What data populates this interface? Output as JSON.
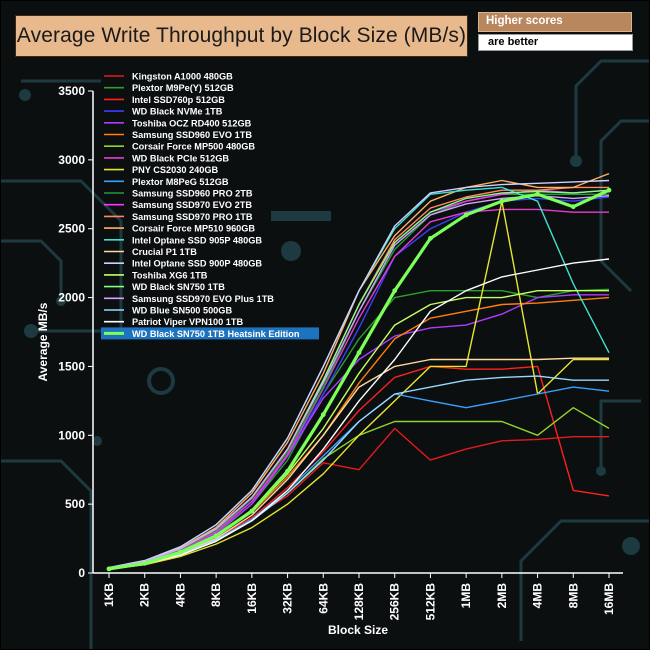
{
  "header": {
    "title": "Average Write Throughput by Block Size (MB/s)",
    "note_top": "Higher scores",
    "note_bottom": "are better"
  },
  "colors": {
    "background": "#0b0f10",
    "decor": "#1c3a40",
    "title_box": "#e8b98d",
    "note_box": "#b8875e",
    "highlight": "#1e73be"
  },
  "chart_data": {
    "type": "line",
    "title": "Average Write Throughput by Block Size (MB/s)",
    "xlabel": "Block Size",
    "ylabel": "Average MB/s",
    "ylim": [
      0,
      3500
    ],
    "yticks": [
      0,
      500,
      1000,
      1500,
      2000,
      2500,
      3000,
      3500
    ],
    "grid": false,
    "legend_placement": "top-left",
    "categories": [
      "1KB",
      "2KB",
      "4KB",
      "8KB",
      "16KB",
      "32KB",
      "64KB",
      "128KB",
      "256KB",
      "512KB",
      "1MB",
      "2MB",
      "4MB",
      "8MB",
      "16MB"
    ],
    "series": [
      {
        "name": "Kingston A1000 480GB",
        "color": "#e41a1c",
        "values": [
          30,
          60,
          120,
          250,
          400,
          560,
          800,
          750,
          1050,
          820,
          900,
          960,
          970,
          990,
          990
        ]
      },
      {
        "name": "Plextor M9Pe(Y) 512GB",
        "color": "#2ca02c",
        "values": [
          35,
          75,
          160,
          280,
          500,
          820,
          1300,
          1700,
          2000,
          2050,
          2050,
          2050,
          2000,
          2050,
          2060
        ]
      },
      {
        "name": "Intel SSD760p 512GB",
        "color": "#ff2020",
        "values": [
          32,
          70,
          140,
          250,
          400,
          620,
          880,
          1180,
          1420,
          1500,
          1480,
          1480,
          1500,
          600,
          560
        ]
      },
      {
        "name": "WD Black NVMe 1TB",
        "color": "#3a3fff",
        "values": [
          35,
          80,
          170,
          310,
          520,
          850,
          1300,
          1780,
          2300,
          2500,
          2620,
          2700,
          2720,
          2700,
          2730
        ]
      },
      {
        "name": "Toshiba OCZ RD400 512GB",
        "color": "#b03aff",
        "values": [
          35,
          80,
          160,
          290,
          500,
          850,
          1270,
          1550,
          1720,
          1780,
          1800,
          1880,
          2000,
          2020,
          2020
        ]
      },
      {
        "name": "Samsung SSD960 EVO 1TB",
        "color": "#ff7f0e",
        "values": [
          35,
          75,
          150,
          270,
          440,
          700,
          1000,
          1380,
          1700,
          1850,
          1900,
          1950,
          1960,
          1980,
          2000
        ]
      },
      {
        "name": "Corsair Force MP500 480GB",
        "color": "#8fd62a",
        "values": [
          30,
          65,
          130,
          230,
          380,
          580,
          830,
          1000,
          1100,
          1100,
          1100,
          1100,
          1000,
          1200,
          1050
        ]
      },
      {
        "name": "WD Black PCIe 512GB",
        "color": "#e83ccf",
        "values": [
          35,
          80,
          165,
          300,
          520,
          860,
          1340,
          1850,
          2300,
          2550,
          2620,
          2640,
          2640,
          2620,
          2620
        ]
      },
      {
        "name": "PNY CS2030 240GB",
        "color": "#e6e630",
        "values": [
          28,
          60,
          120,
          210,
          330,
          500,
          720,
          1000,
          1250,
          1500,
          1500,
          2700,
          1300,
          1550,
          1550
        ]
      },
      {
        "name": "Plextor M8PeG 512GB",
        "color": "#3aa0ff",
        "values": [
          30,
          65,
          135,
          240,
          390,
          600,
          850,
          1100,
          1300,
          1250,
          1200,
          1250,
          1300,
          1350,
          1320
        ]
      },
      {
        "name": "Samsung SSD960 PRO 2TB",
        "color": "#1f9e3a",
        "values": [
          35,
          80,
          170,
          310,
          540,
          880,
          1350,
          1900,
          2350,
          2600,
          2700,
          2750,
          2750,
          2750,
          2750
        ]
      },
      {
        "name": "Samsung SSD970 EVO 2TB",
        "color": "#ff33ff",
        "values": [
          36,
          82,
          175,
          320,
          550,
          900,
          1400,
          1950,
          2400,
          2620,
          2700,
          2750,
          2780,
          2760,
          2780
        ]
      },
      {
        "name": "Samsung SSD970 PRO 1TB",
        "color": "#ff8860",
        "values": [
          36,
          82,
          175,
          320,
          550,
          900,
          1400,
          1950,
          2420,
          2650,
          2730,
          2780,
          2780,
          2800,
          2800
        ]
      },
      {
        "name": "Corsair Force MP510 960GB",
        "color": "#ffb060",
        "values": [
          38,
          85,
          180,
          330,
          580,
          950,
          1450,
          2050,
          2450,
          2700,
          2800,
          2850,
          2800,
          2800,
          2900
        ]
      },
      {
        "name": "Intel Optane SSD 905P 480GB",
        "color": "#40e0d0",
        "values": [
          40,
          90,
          190,
          350,
          600,
          980,
          1500,
          2050,
          2500,
          2750,
          2780,
          2800,
          2700,
          2100,
          1600
        ]
      },
      {
        "name": "Crucial P1 1TB",
        "color": "#ffd9a0",
        "values": [
          32,
          70,
          140,
          250,
          420,
          680,
          1000,
          1350,
          1500,
          1550,
          1550,
          1550,
          1550,
          1560,
          1560
        ]
      },
      {
        "name": "Intel Optane SSD 900P 480GB",
        "color": "#d0d0ff",
        "values": [
          40,
          90,
          190,
          350,
          600,
          980,
          1500,
          2050,
          2520,
          2760,
          2800,
          2820,
          2830,
          2840,
          2850
        ]
      },
      {
        "name": "Toshiba XG6 1TB",
        "color": "#c8ff60",
        "values": [
          33,
          72,
          150,
          270,
          450,
          720,
          1050,
          1450,
          1800,
          1950,
          2000,
          2000,
          2050,
          2050,
          2050
        ]
      },
      {
        "name": "WD Black SN750 1TB",
        "color": "#80ff80",
        "values": [
          36,
          82,
          175,
          320,
          550,
          900,
          1400,
          1950,
          2400,
          2620,
          2720,
          2760,
          2770,
          2760,
          2780
        ]
      },
      {
        "name": "Samsung SSD970 EVO Plus 1TB",
        "color": "#d8a0ff",
        "values": [
          36,
          82,
          175,
          320,
          550,
          900,
          1380,
          1900,
          2380,
          2600,
          2680,
          2720,
          2740,
          2720,
          2740
        ]
      },
      {
        "name": "WD Blue SN500 500GB",
        "color": "#9ad8ff",
        "values": [
          30,
          65,
          135,
          240,
          380,
          580,
          820,
          1100,
          1300,
          1350,
          1400,
          1420,
          1430,
          1400,
          1400
        ]
      },
      {
        "name": "Patriot Viper VPN100 1TB",
        "color": "#ffffff",
        "values": [
          30,
          65,
          130,
          230,
          380,
          600,
          900,
          1250,
          1550,
          1900,
          2050,
          2150,
          2200,
          2250,
          2280
        ]
      },
      {
        "name": "WD Black SN750 1TB Heatsink Edition",
        "color": "#7dff5a",
        "highlight": true,
        "values": [
          30,
          70,
          150,
          270,
          450,
          740,
          1150,
          1600,
          2050,
          2430,
          2600,
          2700,
          2750,
          2660,
          2780
        ]
      }
    ]
  }
}
